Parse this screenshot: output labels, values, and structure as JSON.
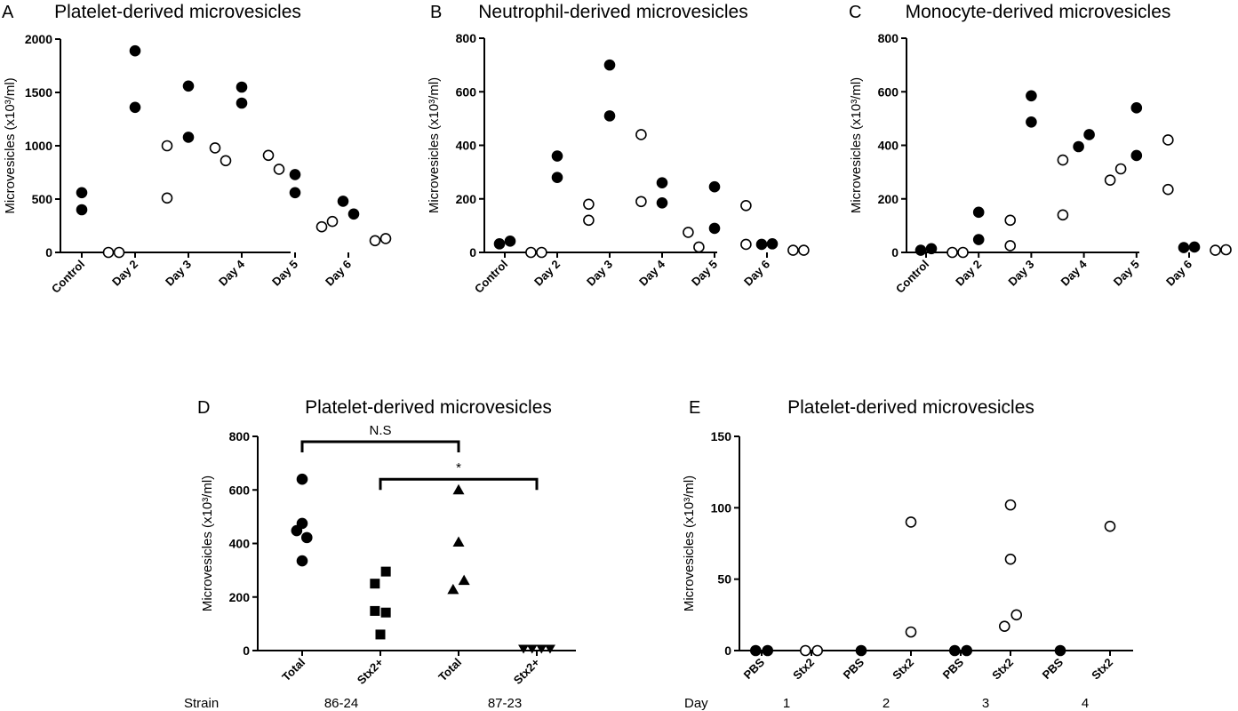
{
  "figure": {
    "axis_label": "Microvesicles (x10³/ml)",
    "row_label_d": "Strain",
    "row_label_e": "Day"
  },
  "chart_data": [
    {
      "panel": "A",
      "type": "scatter",
      "title": "Platelet-derived microvesicles",
      "ylabel": "Microvesicles (x10³/ml)",
      "ylim": [
        0,
        2000
      ],
      "yticks": [
        0,
        500,
        1000,
        1500,
        2000
      ],
      "categories": [
        "Control",
        "Day 2",
        "Day 3",
        "Day 4",
        "Day 5",
        "Day 6"
      ],
      "groups": [
        {
          "pos": 0.0,
          "filled": true,
          "values": [
            560,
            400
          ]
        },
        {
          "pos": 0.6,
          "filled": false,
          "values": [
            0,
            0
          ]
        },
        {
          "pos": 1.0,
          "filled": true,
          "values": [
            1890,
            1360
          ]
        },
        {
          "pos": 1.6,
          "filled": false,
          "values": [
            1000,
            510
          ]
        },
        {
          "pos": 2.0,
          "filled": true,
          "values": [
            1560,
            1080
          ]
        },
        {
          "pos": 2.6,
          "filled": false,
          "values": [
            980,
            860
          ]
        },
        {
          "pos": 3.0,
          "filled": true,
          "values": [
            1550,
            1400
          ]
        },
        {
          "pos": 3.6,
          "filled": false,
          "values": [
            910,
            780
          ]
        },
        {
          "pos": 4.0,
          "filled": true,
          "values": [
            730,
            560
          ]
        },
        {
          "pos": 4.6,
          "filled": false,
          "values": [
            240,
            290
          ]
        },
        {
          "pos": 5.0,
          "filled": true,
          "values": [
            480,
            360
          ]
        },
        {
          "pos": 5.6,
          "filled": false,
          "values": [
            110,
            130
          ]
        }
      ]
    },
    {
      "panel": "B",
      "type": "scatter",
      "title": "Neutrophil-derived microvesicles",
      "ylabel": "Microvesicles (x10³/ml)",
      "ylim": [
        0,
        800
      ],
      "yticks": [
        0,
        200,
        400,
        600,
        800
      ],
      "categories": [
        "Control",
        "Day 2",
        "Day 3",
        "Day 4",
        "Day 5",
        "Day 6"
      ],
      "groups": [
        {
          "pos": 0.0,
          "filled": true,
          "values": [
            32,
            42
          ]
        },
        {
          "pos": 0.6,
          "filled": false,
          "values": [
            0,
            0
          ]
        },
        {
          "pos": 1.0,
          "filled": true,
          "values": [
            360,
            280
          ]
        },
        {
          "pos": 1.6,
          "filled": false,
          "values": [
            180,
            120
          ]
        },
        {
          "pos": 2.0,
          "filled": true,
          "values": [
            700,
            510
          ]
        },
        {
          "pos": 2.6,
          "filled": false,
          "values": [
            440,
            190
          ]
        },
        {
          "pos": 3.0,
          "filled": true,
          "values": [
            260,
            185
          ]
        },
        {
          "pos": 3.6,
          "filled": false,
          "values": [
            75,
            20
          ]
        },
        {
          "pos": 4.0,
          "filled": true,
          "values": [
            245,
            90
          ]
        },
        {
          "pos": 4.6,
          "filled": false,
          "values": [
            175,
            30
          ]
        },
        {
          "pos": 5.0,
          "filled": true,
          "values": [
            30,
            32
          ]
        },
        {
          "pos": 5.6,
          "filled": false,
          "values": [
            8,
            8
          ]
        }
      ]
    },
    {
      "panel": "C",
      "type": "scatter",
      "title": "Monocyte-derived microvesicles",
      "ylabel": "Microvesicles (x10³/ml)",
      "ylim": [
        0,
        800
      ],
      "yticks": [
        0,
        200,
        400,
        600,
        800
      ],
      "categories": [
        "Control",
        "Day 2",
        "Day 3",
        "Day 4",
        "Day 5",
        "Day 6"
      ],
      "groups": [
        {
          "pos": 0.0,
          "filled": true,
          "values": [
            8,
            14
          ]
        },
        {
          "pos": 0.6,
          "filled": false,
          "values": [
            0,
            0
          ]
        },
        {
          "pos": 1.0,
          "filled": true,
          "values": [
            150,
            48
          ]
        },
        {
          "pos": 1.6,
          "filled": false,
          "values": [
            120,
            25
          ]
        },
        {
          "pos": 2.0,
          "filled": true,
          "values": [
            585,
            487
          ]
        },
        {
          "pos": 2.6,
          "filled": false,
          "values": [
            345,
            140
          ]
        },
        {
          "pos": 3.0,
          "filled": true,
          "values": [
            395,
            440
          ]
        },
        {
          "pos": 3.6,
          "filled": false,
          "values": [
            270,
            312
          ]
        },
        {
          "pos": 4.0,
          "filled": true,
          "values": [
            540,
            362
          ]
        },
        {
          "pos": 4.6,
          "filled": false,
          "values": [
            420,
            235
          ]
        },
        {
          "pos": 5.0,
          "filled": true,
          "values": [
            18,
            20
          ]
        },
        {
          "pos": 5.6,
          "filled": false,
          "values": [
            8,
            10
          ]
        }
      ]
    },
    {
      "panel": "D",
      "type": "scatter",
      "title": "Platelet-derived microvesicles",
      "ylabel": "Microvesicles (x10³/ml)",
      "ylim": [
        0,
        800
      ],
      "yticks": [
        0,
        200,
        400,
        600,
        800
      ],
      "categories": [
        "Total",
        "Stx2+",
        "Total",
        "Stx2+"
      ],
      "strain_groups": [
        "86-24",
        "87-23"
      ],
      "groups": [
        {
          "cat": 0,
          "marker": "circle",
          "points": [
            [
              0.0,
              640
            ],
            [
              0.0,
              475
            ],
            [
              -0.07,
              448
            ],
            [
              0.06,
              422
            ],
            [
              0.0,
              335
            ]
          ]
        },
        {
          "cat": 1,
          "marker": "square",
          "points": [
            [
              -0.07,
              250
            ],
            [
              0.07,
              295
            ],
            [
              -0.07,
              148
            ],
            [
              0.07,
              142
            ],
            [
              0.0,
              60
            ]
          ]
        },
        {
          "cat": 2,
          "marker": "triangle",
          "points": [
            [
              0.0,
              600
            ],
            [
              0.0,
              405
            ],
            [
              -0.07,
              228
            ],
            [
              0.07,
              262
            ]
          ]
        },
        {
          "cat": 3,
          "marker": "triangle-down",
          "points": [
            [
              -0.17,
              5
            ],
            [
              -0.06,
              5
            ],
            [
              0.06,
              5
            ],
            [
              0.17,
              5
            ]
          ]
        }
      ],
      "comparisons": [
        {
          "from": 0,
          "to": 2,
          "label": "N.S",
          "y": 780
        },
        {
          "from": 1,
          "to": 3,
          "label": "*",
          "y": 640
        }
      ]
    },
    {
      "panel": "E",
      "type": "scatter",
      "title": "Platelet-derived microvesicles",
      "ylabel": "Microvesicles (x10³/ml)",
      "ylim": [
        0,
        150
      ],
      "yticks": [
        0,
        50,
        100,
        150
      ],
      "categories": [
        "PBS",
        "Stx2",
        "PBS",
        "Stx2",
        "PBS",
        "Stx2",
        "PBS",
        "Stx2"
      ],
      "day_groups": [
        "1",
        "2",
        "3",
        "4"
      ],
      "groups": [
        {
          "cat": 0,
          "filled": true,
          "points": [
            [
              -0.12,
              0
            ],
            [
              0.12,
              0
            ]
          ]
        },
        {
          "cat": 1,
          "filled": false,
          "points": [
            [
              -0.12,
              0
            ],
            [
              0.12,
              0
            ]
          ]
        },
        {
          "cat": 2,
          "filled": true,
          "points": [
            [
              0.0,
              0
            ]
          ]
        },
        {
          "cat": 3,
          "filled": false,
          "points": [
            [
              0.0,
              90
            ],
            [
              0.0,
              13
            ]
          ]
        },
        {
          "cat": 4,
          "filled": true,
          "points": [
            [
              -0.12,
              0
            ],
            [
              0.12,
              0
            ]
          ]
        },
        {
          "cat": 5,
          "filled": false,
          "points": [
            [
              0.0,
              102
            ],
            [
              0.0,
              64
            ],
            [
              0.12,
              25
            ],
            [
              -0.12,
              17
            ]
          ]
        },
        {
          "cat": 6,
          "filled": true,
          "points": [
            [
              0.0,
              0
            ]
          ]
        },
        {
          "cat": 7,
          "filled": false,
          "points": [
            [
              0.0,
              87
            ]
          ]
        }
      ]
    }
  ]
}
